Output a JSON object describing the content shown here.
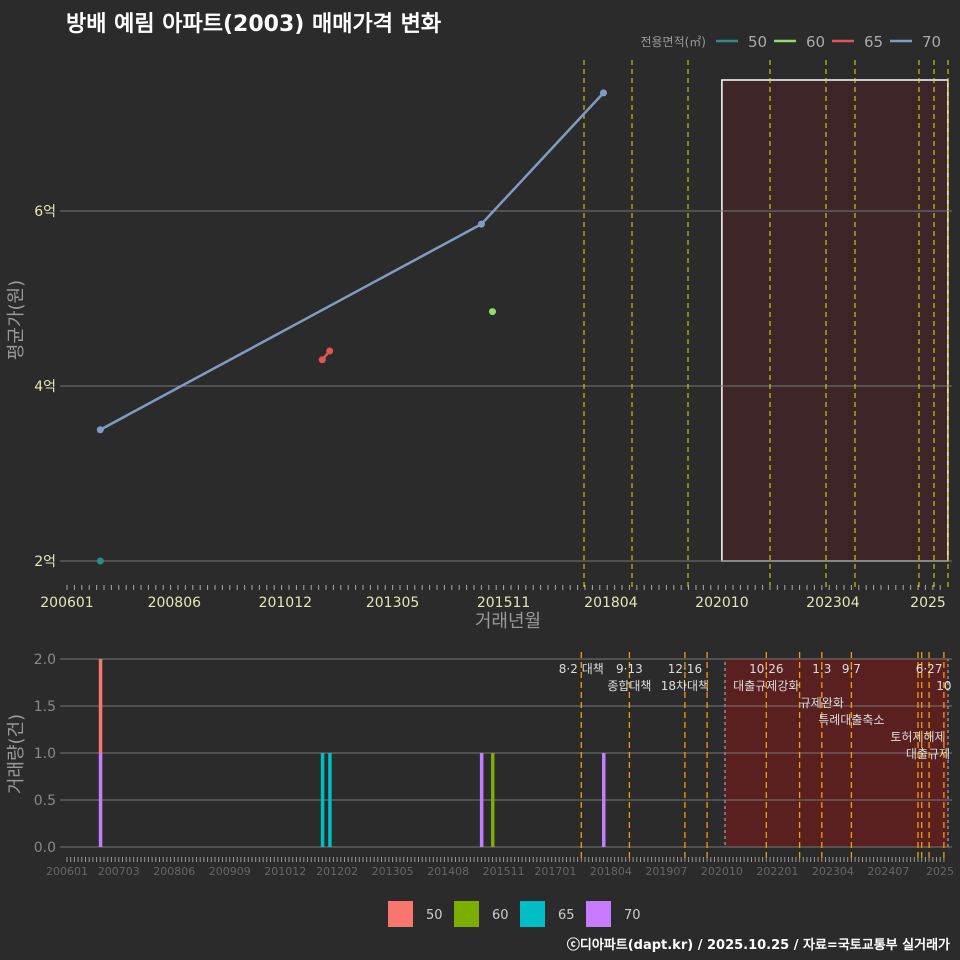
{
  "title": "방배 예림 아파트(2003) 매매가격 변화",
  "footer": "ⓒ디아파트(dapt.kr) / 2025.10.25 / 자료=국토교통부 실거래가",
  "chart_data": [
    {
      "type": "line",
      "title": "방배 예림 아파트(2003) 매매가격 변화",
      "xlabel": "거래년월",
      "ylabel": "평균가(원)",
      "legend_title": "전용면적(㎡)",
      "legend_position": "top-right",
      "x_ticks": [
        "200601",
        "200806",
        "201012",
        "201305",
        "201511",
        "201804",
        "202010",
        "202304",
        "2025"
      ],
      "y_ticks": [
        {
          "v": 2,
          "label": "2억"
        },
        {
          "v": 4,
          "label": "4억"
        },
        {
          "v": 6,
          "label": "6억"
        }
      ],
      "ylim": [
        1.7,
        7.7
      ],
      "series": [
        {
          "name": "50",
          "color": "#2e8b8b",
          "points": [
            [
              "200610",
              2.0
            ]
          ]
        },
        {
          "name": "60",
          "color": "#8fdc6a",
          "points": [
            [
              "201508",
              4.85
            ]
          ]
        },
        {
          "name": "65",
          "color": "#e05555",
          "points": [
            [
              "201110",
              4.3
            ],
            [
              "201112",
              4.4
            ]
          ]
        },
        {
          "name": "70",
          "color": "#7f9cc6",
          "points": [
            [
              "200610",
              3.5
            ],
            [
              "201505",
              5.85
            ],
            [
              "201802",
              7.35
            ]
          ]
        }
      ],
      "shaded": [
        "202010",
        "202510"
      ]
    },
    {
      "type": "bar",
      "ylabel": "거래량(건)",
      "ylim": [
        0,
        2
      ],
      "y_ticks": [
        "0.0",
        "0.5",
        "1.0",
        "1.5",
        "2.0"
      ],
      "x_ticks": [
        "200601",
        "200703",
        "200806",
        "200909",
        "201012",
        "201202",
        "201305",
        "201408",
        "201511",
        "201701",
        "201804",
        "201907",
        "202010",
        "202201",
        "202304",
        "202407",
        "2025"
      ],
      "legend": [
        {
          "name": "50",
          "color": "#f8766d"
        },
        {
          "name": "60",
          "color": "#7cae00"
        },
        {
          "name": "65",
          "color": "#00bfc4"
        },
        {
          "name": "70",
          "color": "#c77cff"
        }
      ],
      "bars": [
        {
          "month": "200610",
          "series": "70",
          "value": 1,
          "base": 0
        },
        {
          "month": "200610",
          "series": "50",
          "value": 1,
          "base": 1
        },
        {
          "month": "201110",
          "series": "65",
          "value": 1,
          "base": 0
        },
        {
          "month": "201112",
          "series": "65",
          "value": 1,
          "base": 0
        },
        {
          "month": "201505",
          "series": "70",
          "value": 1,
          "base": 0
        },
        {
          "month": "201508",
          "series": "60",
          "value": 1,
          "base": 0
        },
        {
          "month": "201802",
          "series": "70",
          "value": 1,
          "base": 0
        }
      ],
      "events": [
        {
          "month": "201708",
          "date": "8·2 대책",
          "name": ""
        },
        {
          "month": "201809",
          "date": "9·13",
          "name": "종합대책"
        },
        {
          "month": "201912",
          "date": "12·16",
          "name": "18차대책"
        },
        {
          "month": "202006",
          "date": "",
          "name": ""
        },
        {
          "month": "202110",
          "date": "10·26",
          "name": "대출규제강화"
        },
        {
          "month": "202207",
          "date": "",
          "name": ""
        },
        {
          "month": "202301",
          "date": "1·3",
          "name": "규제완화"
        },
        {
          "month": "202309",
          "date": "9·7",
          "name": "특례대출축소"
        },
        {
          "month": "202503",
          "date": "",
          "name": "토허제해제"
        },
        {
          "month": "202504",
          "date": "",
          "name": ""
        },
        {
          "month": "202506",
          "date": "6·27",
          "name": "대출규제"
        },
        {
          "month": "202510",
          "date": "10",
          "name": ""
        }
      ]
    }
  ]
}
